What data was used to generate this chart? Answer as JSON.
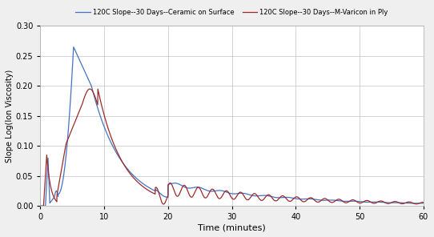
{
  "title": "",
  "xlabel": "Time (minutes)",
  "ylabel": "Slope Log(Ion Viscosity)",
  "xlim": [
    0,
    60
  ],
  "ylim": [
    0,
    0.3
  ],
  "yticks": [
    0,
    0.05,
    0.1,
    0.15,
    0.2,
    0.25,
    0.3
  ],
  "xticks": [
    0,
    10,
    20,
    30,
    40,
    50,
    60
  ],
  "legend1": "120C Slope--30 Days--Ceramic on Surface",
  "legend2": "120C Slope--30 Days--M-Varicon in Ply",
  "color1": "#4472C4",
  "color2": "#9E2A2A",
  "bg_color": "#EFEFEF",
  "grid_color": "#CCCCCC",
  "figsize": [
    5.42,
    2.96
  ],
  "dpi": 100
}
